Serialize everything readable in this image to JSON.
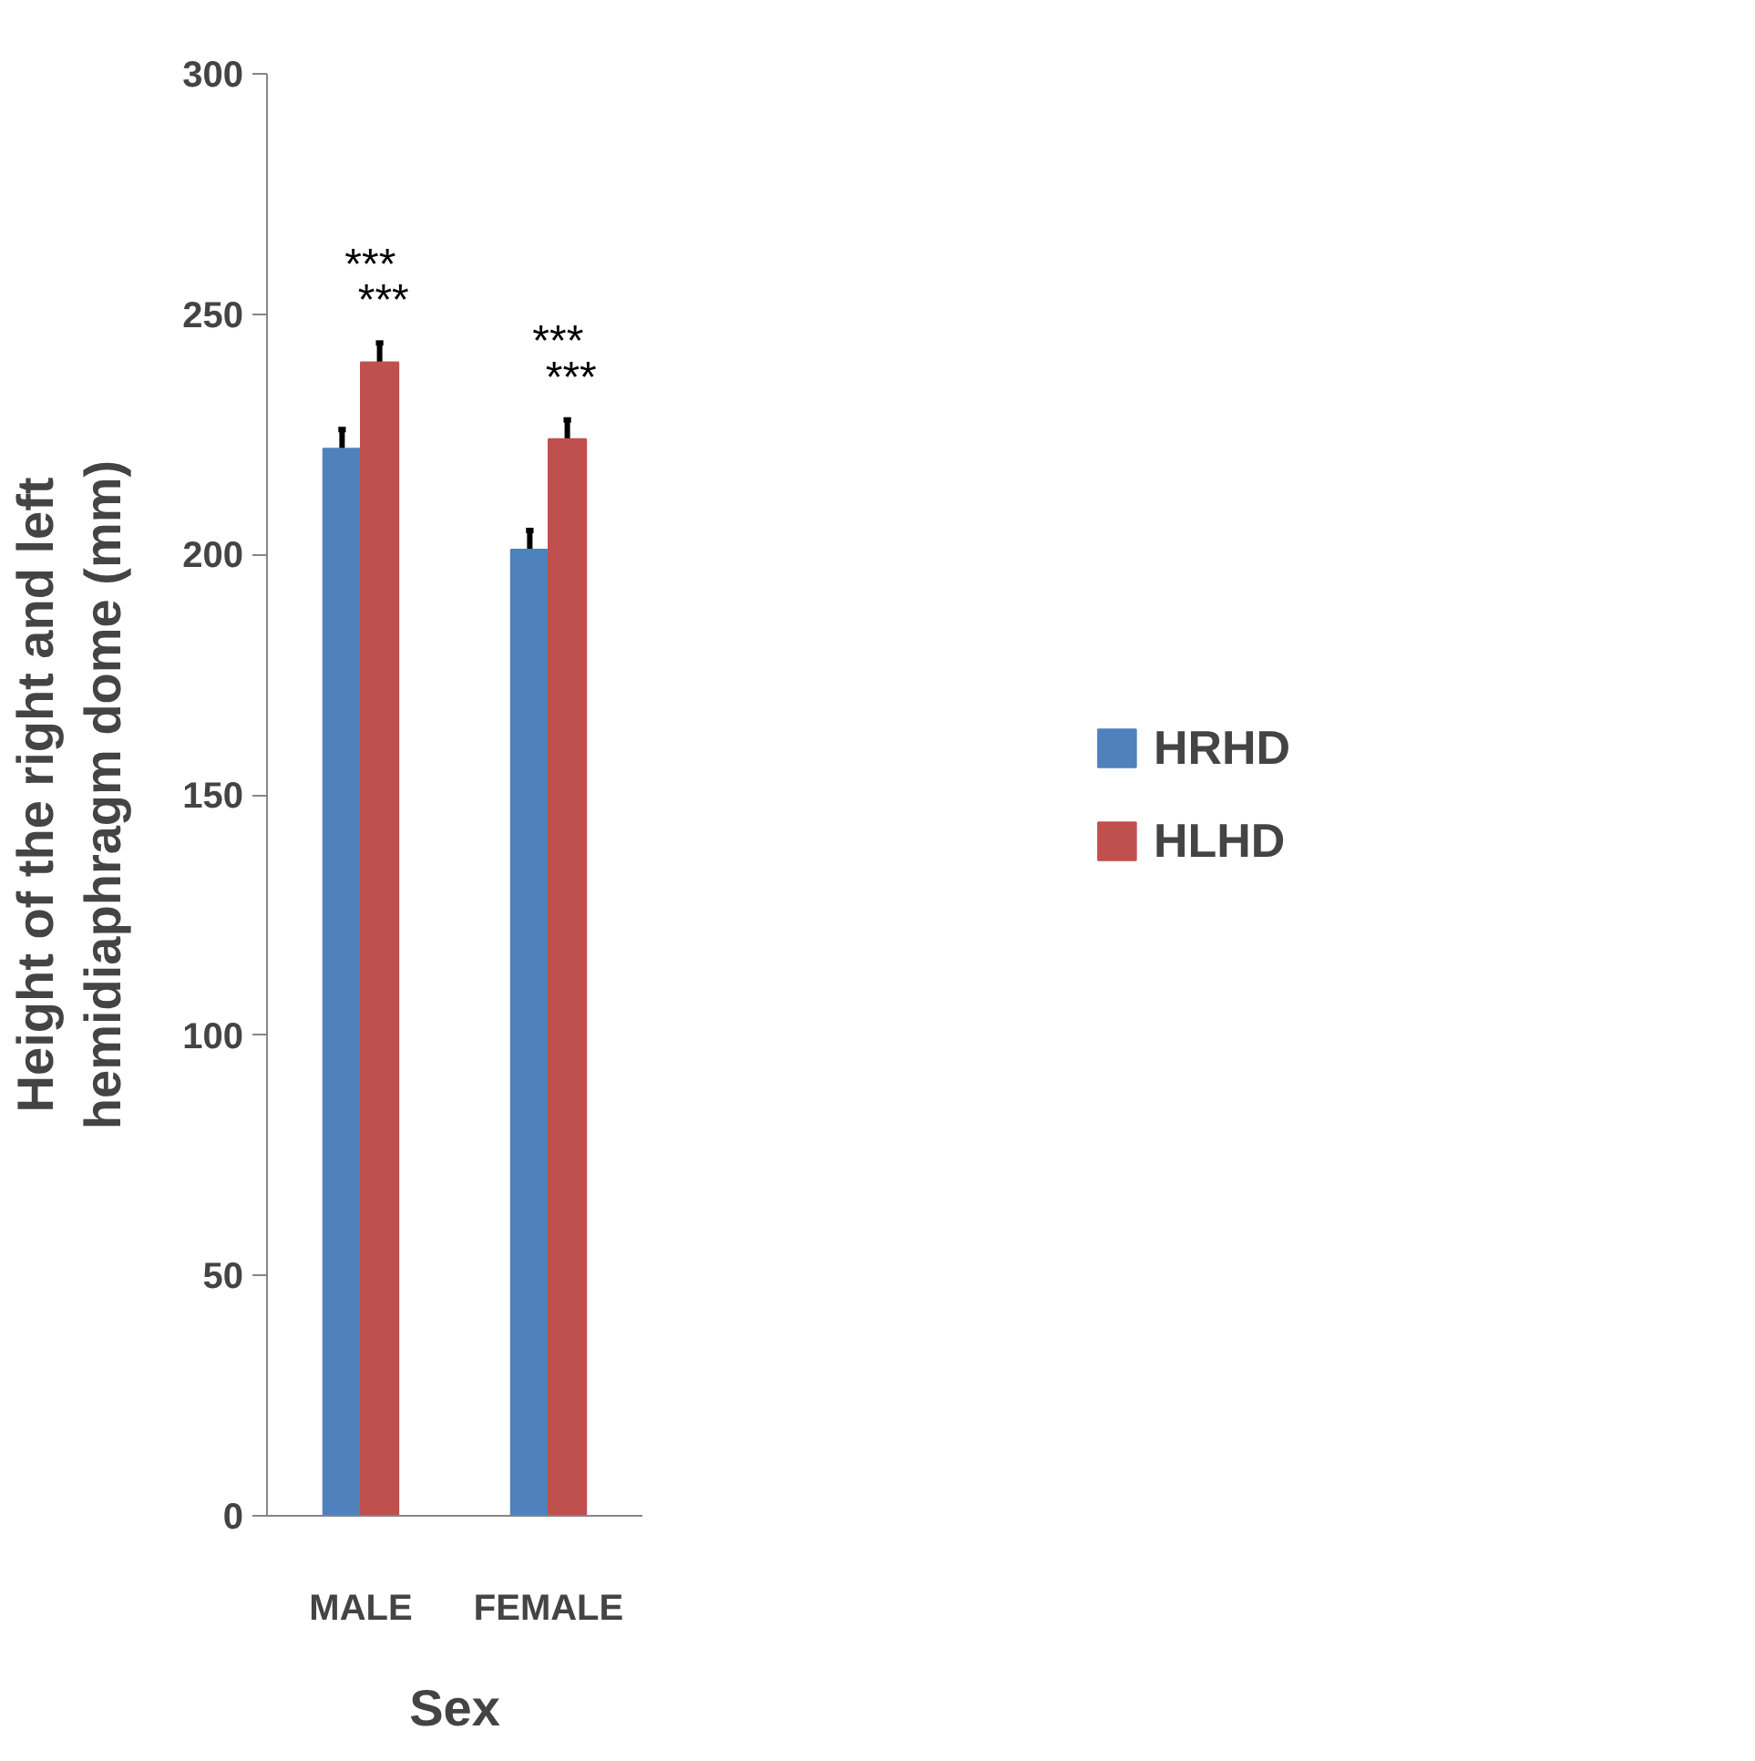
{
  "chart_data": {
    "type": "bar",
    "xlabel": "Sex",
    "ylabel": "Height of the right and left hemidiaphragm dome (mm)",
    "categories": [
      "MALE",
      "FEMALE"
    ],
    "series": [
      {
        "name": "HRHD",
        "color": "#4f81bd",
        "values": [
          222,
          201
        ],
        "errors": [
          4,
          4
        ]
      },
      {
        "name": "HLHD",
        "color": "#c0504d",
        "values": [
          240,
          224
        ],
        "errors": [
          4,
          4
        ]
      }
    ],
    "ylim": [
      0,
      300
    ],
    "yticks": [
      0,
      50,
      100,
      150,
      200,
      250,
      300
    ],
    "grid": false,
    "legend": "right",
    "annotations": [
      "***",
      "***",
      "***",
      "***"
    ]
  }
}
